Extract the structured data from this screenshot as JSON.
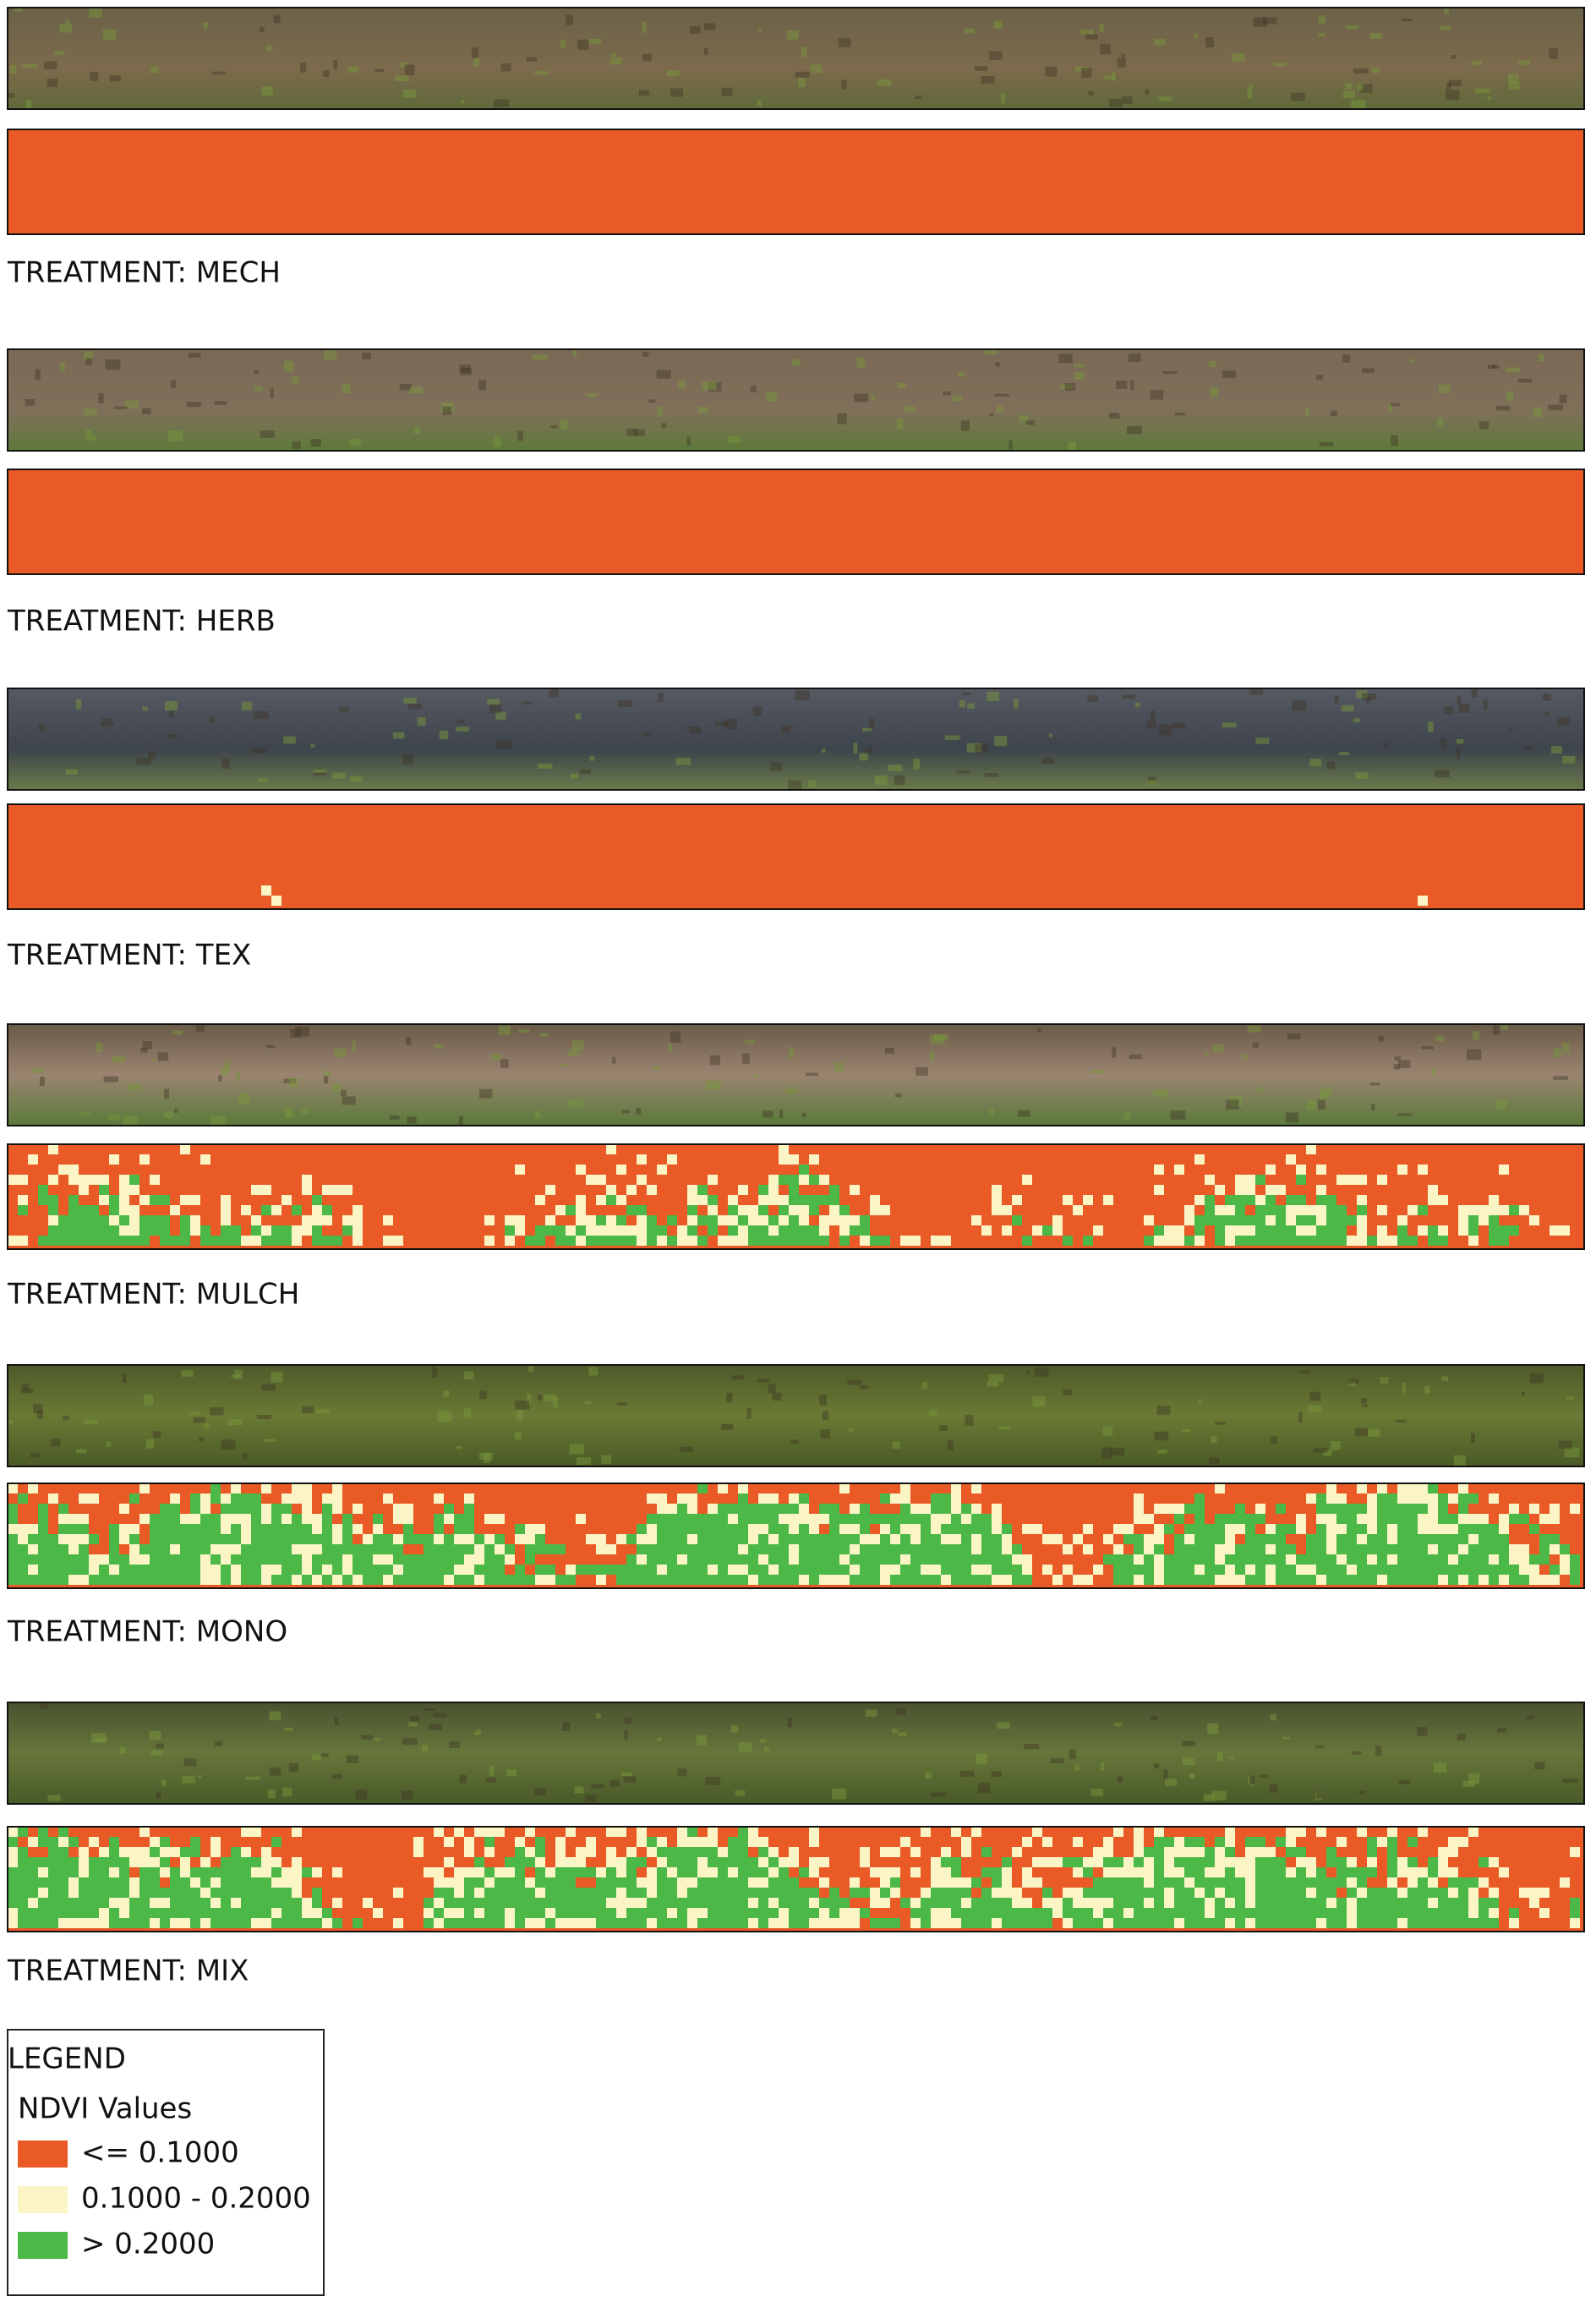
{
  "treatments": [
    {
      "label": "TREATMENT: MECH"
    },
    {
      "label": "TREATMENT: HERB"
    },
    {
      "label": "TREATMENT: TEX"
    },
    {
      "label": "TREATMENT: MULCH"
    },
    {
      "label": "TREATMENT: MONO"
    },
    {
      "label": "TREATMENT: MIX"
    }
  ],
  "legend": {
    "title": "LEGEND",
    "subtitle": "NDVI Values",
    "items": [
      {
        "label": "<= 0.1000",
        "color": "#e95a26"
      },
      {
        "label": "0.1000 - 0.2000",
        "color": "#fbf5c6"
      },
      {
        "label": "> 0.2000",
        "color": "#4cb848"
      }
    ]
  }
}
